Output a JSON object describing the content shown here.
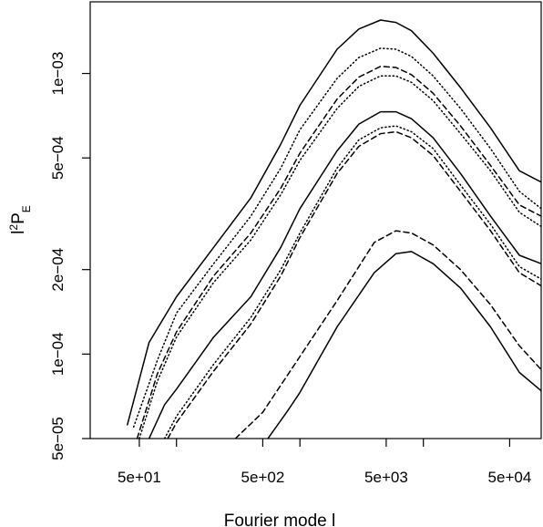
{
  "chart_data": {
    "type": "line",
    "title": "",
    "xlabel": "Fourier mode l",
    "ylabel": {
      "base": "l",
      "sup": "2",
      "main": "P",
      "sub": "E"
    },
    "x_scale": "log",
    "y_scale": "log",
    "xlim": [
      20,
      90000
    ],
    "ylim": [
      5e-05,
      0.0018
    ],
    "x_ticks": [
      {
        "value": 50,
        "label": "5e+01"
      },
      {
        "value": 100,
        "label": ""
      },
      {
        "value": 500,
        "label": "5e+02"
      },
      {
        "value": 1000,
        "label": ""
      },
      {
        "value": 5000,
        "label": "5e+03"
      },
      {
        "value": 10000,
        "label": ""
      },
      {
        "value": 50000,
        "label": "5e+04"
      },
      {
        "value": 100000,
        "label": ""
      }
    ],
    "y_ticks": [
      {
        "value": 5e-05,
        "label": "5e−05"
      },
      {
        "value": 0.0001,
        "label": "1e−04"
      },
      {
        "value": 0.0002,
        "label": "2e−04"
      },
      {
        "value": 0.0005,
        "label": "5e−04"
      },
      {
        "value": 0.001,
        "label": "1e−03"
      }
    ],
    "grid": false,
    "legend": "none",
    "series": [
      {
        "style": "solid",
        "x": [
          40,
          60,
          100,
          200,
          400,
          700,
          1000,
          2000,
          3000,
          4500,
          6000,
          8000,
          12000,
          20000,
          35000,
          60000,
          90000
        ],
        "y": [
          5.6e-05,
          0.00011,
          0.00016,
          0.00024,
          0.00036,
          0.00056,
          0.00077,
          0.00122,
          0.00144,
          0.00155,
          0.00152,
          0.00142,
          0.00118,
          0.00089,
          0.00064,
          0.00045,
          0.00041
        ]
      },
      {
        "style": "dotted",
        "x": [
          45,
          70,
          100,
          200,
          400,
          700,
          1000,
          2000,
          3000,
          4500,
          6000,
          8000,
          12000,
          20000,
          35000,
          60000,
          90000
        ],
        "y": [
          5.5e-05,
          9.5e-05,
          0.00014,
          0.00021,
          0.00031,
          0.00046,
          0.00063,
          0.00096,
          0.00114,
          0.00123,
          0.00122,
          0.00115,
          0.00098,
          0.00075,
          0.00054,
          0.00038,
          0.00033
        ]
      },
      {
        "style": "dashed",
        "x": [
          48,
          70,
          100,
          200,
          400,
          700,
          1000,
          2000,
          3000,
          4500,
          6000,
          8000,
          12000,
          20000,
          35000,
          60000,
          90000
        ],
        "y": [
          5e-05,
          8.5e-05,
          0.00012,
          0.00019,
          0.00027,
          0.00039,
          0.00052,
          0.00081,
          0.00097,
          0.00106,
          0.00105,
          0.00099,
          0.00085,
          0.00065,
          0.00047,
          0.00034,
          0.00031
        ]
      },
      {
        "style": "dotted",
        "x": [
          50,
          70,
          100,
          200,
          400,
          700,
          1000,
          2000,
          3000,
          4500,
          6000,
          8000,
          12000,
          20000,
          35000,
          60000,
          90000
        ],
        "y": [
          5e-05,
          8e-05,
          0.000115,
          0.00018,
          0.000255,
          0.00037,
          0.00049,
          0.00075,
          0.0009,
          0.00098,
          0.00098,
          0.00093,
          0.0008,
          0.00061,
          0.00045,
          0.00032,
          0.000285
        ]
      },
      {
        "style": "solid",
        "x": [
          60,
          80,
          100,
          200,
          400,
          700,
          1000,
          2000,
          3000,
          4500,
          6000,
          8000,
          12000,
          20000,
          35000,
          60000,
          90000
        ],
        "y": [
          5e-05,
          6.6e-05,
          7.5e-05,
          0.000115,
          0.00016,
          0.00024,
          0.00033,
          0.00053,
          0.00066,
          0.00073,
          0.00073,
          0.00069,
          0.00059,
          0.00044,
          0.00031,
          0.000225,
          0.00021
        ]
      },
      {
        "style": "dotted",
        "x": [
          80,
          100,
          200,
          400,
          700,
          1000,
          2000,
          3000,
          4500,
          6000,
          8000,
          12000,
          20000,
          35000,
          60000,
          90000
        ],
        "y": [
          5e-05,
          6e-05,
          9.2e-05,
          0.000135,
          0.0002,
          0.00027,
          0.00046,
          0.00058,
          0.00064,
          0.00065,
          0.00062,
          0.00054,
          0.0004,
          0.00029,
          0.000205,
          0.000185
        ]
      },
      {
        "style": "dashed",
        "x": [
          85,
          100,
          200,
          400,
          700,
          1000,
          2000,
          3000,
          4500,
          6000,
          8000,
          12000,
          20000,
          35000,
          60000,
          90000
        ],
        "y": [
          5e-05,
          5.7e-05,
          8.7e-05,
          0.000128,
          0.00019,
          0.00026,
          0.00044,
          0.00055,
          0.00061,
          0.00062,
          0.00059,
          0.00051,
          0.00038,
          0.000275,
          0.000195,
          0.000175
        ]
      },
      {
        "style": "dashed",
        "x": [
          300,
          500,
          1000,
          2000,
          4000,
          6000,
          8000,
          12000,
          20000,
          35000,
          60000,
          90000
        ],
        "y": [
          5e-05,
          6.2e-05,
          9.8e-05,
          0.000155,
          0.00025,
          0.000275,
          0.00027,
          0.000245,
          0.0002,
          0.00015,
          0.000107,
          8.8e-05
        ]
      },
      {
        "style": "solid",
        "x": [
          550,
          800,
          1000,
          2000,
          4000,
          6000,
          8000,
          12000,
          20000,
          35000,
          60000,
          90000
        ],
        "y": [
          5e-05,
          6.3e-05,
          7.3e-05,
          0.000125,
          0.000195,
          0.000228,
          0.000232,
          0.00021,
          0.000172,
          0.000125,
          8.6e-05,
          7.4e-05
        ]
      }
    ]
  }
}
